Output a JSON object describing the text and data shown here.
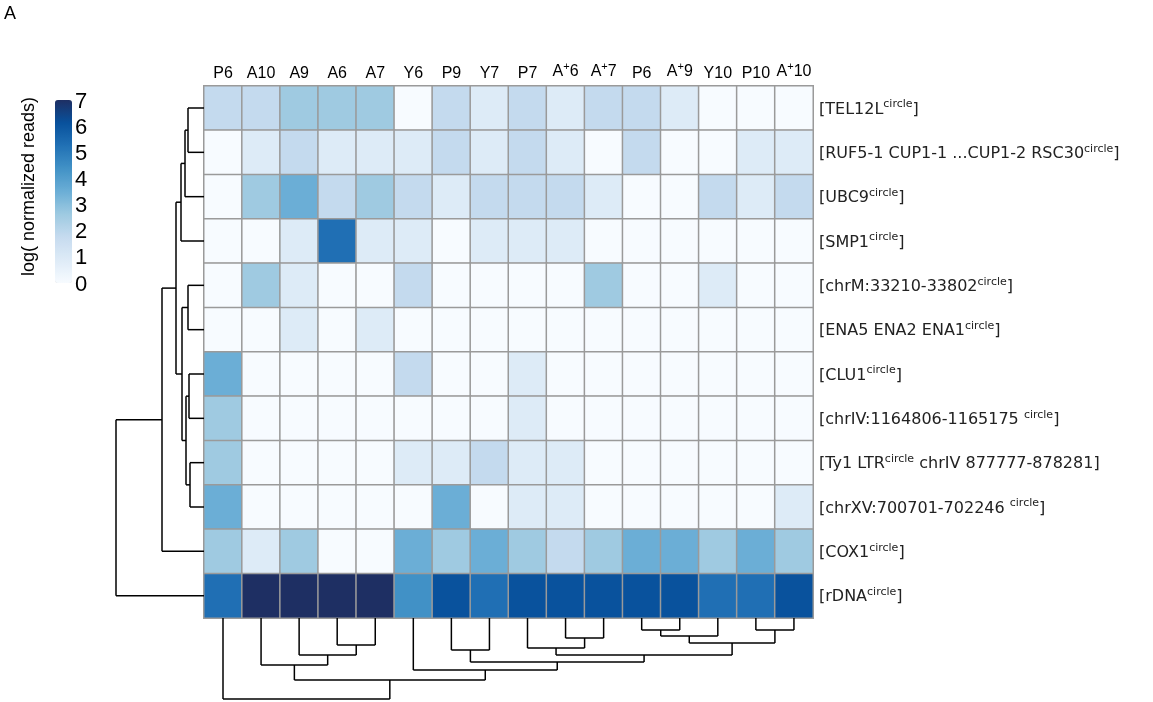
{
  "chart_data": {
    "type": "heatmap",
    "annotations": [
      "A"
    ],
    "clabel": "log( normalized reads)",
    "categories": [
      "P6",
      "A10",
      "A9",
      "A6",
      "A7",
      "Y6",
      "P9",
      "Y7",
      "P7",
      "A$^{+}$6",
      "A$^{+}$7",
      "P6",
      "A$^{+}$9",
      "Y10",
      "P10",
      "A$^{+}$10"
    ],
    "y_categories": [
      "[TEL12L$^{circle}$]",
      "[RUF5-1 CUP1-1 ...CUP1-2 RSC30$^{circle}$]",
      "[UBC9$^{circle}$]",
      "[SMP1$^{circle}$]",
      "[chrM:33210-33802$^{circle}$]",
      "[ENA5 ENA2 ENA1$^{circle}$]",
      "[CLU1$^{circle}$]",
      "[chrIV:1164806-1165175 $^{circle}$]",
      "[Ty1 LTR$^{circle}$ chrIV 877777-878281]",
      "[chrXV:700701-702246 $^{circle}$]",
      "[COX1$^{circle}$]",
      "[rDNA$^{circle}$]"
    ],
    "cells": [
      [
        1.8,
        1.8,
        2.6,
        2.6,
        2.6,
        0,
        1.8,
        0.9,
        1.8,
        0.9,
        1.8,
        1.8,
        0.9,
        0,
        0,
        0
      ],
      [
        0,
        0.9,
        1.8,
        0.9,
        0.9,
        0.9,
        1.8,
        0.9,
        1.8,
        0.9,
        0,
        1.8,
        0,
        0,
        0.9,
        0.9
      ],
      [
        0,
        2.6,
        3.5,
        1.8,
        2.6,
        1.8,
        0.9,
        1.8,
        1.8,
        1.8,
        0.9,
        0,
        0,
        1.8,
        0.9,
        1.8
      ],
      [
        0,
        0,
        0.9,
        5.3,
        0.9,
        0.9,
        0,
        0.9,
        0.9,
        0.9,
        0,
        0,
        0,
        0,
        0,
        0
      ],
      [
        0,
        2.6,
        0.9,
        0,
        0,
        1.8,
        0,
        0,
        0,
        0,
        2.6,
        0,
        0,
        0.9,
        0,
        0
      ],
      [
        0,
        0,
        0.9,
        0,
        0.9,
        0,
        0,
        0,
        0,
        0,
        0,
        0,
        0,
        0,
        0,
        0
      ],
      [
        3.5,
        0,
        0,
        0,
        0,
        1.8,
        0,
        0,
        0.9,
        0,
        0,
        0,
        0,
        0,
        0,
        0
      ],
      [
        2.6,
        0,
        0,
        0,
        0,
        0,
        0,
        0,
        0.9,
        0,
        0,
        0,
        0,
        0,
        0,
        0
      ],
      [
        2.6,
        0,
        0,
        0,
        0,
        0.9,
        0.9,
        1.8,
        0.9,
        0.9,
        0,
        0,
        0,
        0,
        0,
        0
      ],
      [
        3.5,
        0,
        0,
        0,
        0,
        0,
        3.5,
        0,
        0.9,
        0.9,
        0,
        0,
        0,
        0,
        0,
        0.9
      ],
      [
        2.6,
        0.9,
        2.6,
        0,
        0,
        3.5,
        2.6,
        3.5,
        2.6,
        1.8,
        2.6,
        3.5,
        3.5,
        2.6,
        3.5,
        2.6
      ],
      [
        5.3,
        7,
        7,
        7,
        7,
        4.4,
        6.1,
        5.3,
        6.1,
        6.1,
        6.1,
        6.1,
        6.1,
        5.3,
        5.3,
        6.1
      ]
    ],
    "colors": [
      "#f7fbff",
      "#deebf7",
      "#c6dbef",
      "#9ecae1",
      "#6baed6",
      "#4292c6",
      "#2171b5",
      "#08519c",
      "#1e2f63"
    ],
    "clim": [
      0,
      7
    ],
    "cticks": [
      0,
      1,
      2,
      3,
      4,
      5,
      6,
      7
    ]
  }
}
